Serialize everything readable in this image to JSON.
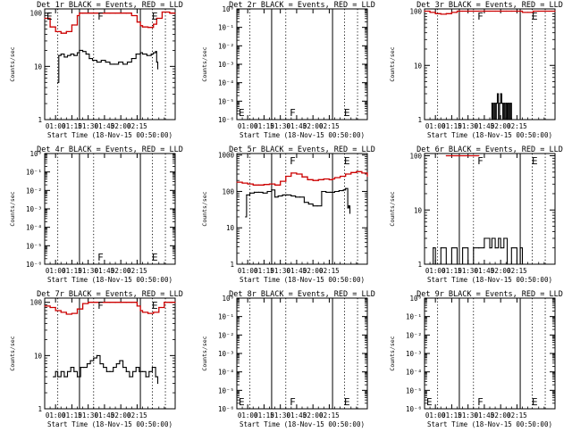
{
  "chart_data": [
    {
      "type": "line",
      "title": "Det 1r BLACK = Events, RED = LLD",
      "xlabel": "Start Time (18-Nov-15 00:50:00)",
      "ylabel": "Counts/sec",
      "yscale": "log",
      "ylim": [
        1,
        120
      ],
      "ytick_labels": [
        "1",
        "10",
        "100"
      ],
      "xlim_min": [
        0,
        120
      ],
      "xtick_labels": [
        "01:00",
        "01:15",
        "01:30",
        "01:45",
        "02:00",
        "02:15"
      ],
      "markers": [
        {
          "label": "E",
          "x": 0
        },
        {
          "label": "F",
          "x": 47
        },
        {
          "label": "E",
          "x": 97
        }
      ],
      "dotted_lines_min": [
        12,
        45,
        99,
        111
      ],
      "solid_lines_min": [
        32,
        88
      ],
      "series": [
        {
          "color": "#cc0000",
          "role": "red",
          "x": [
            0,
            5,
            10,
            15,
            20,
            25,
            30,
            32,
            35,
            40,
            45,
            50,
            55,
            60,
            65,
            70,
            75,
            80,
            85,
            88,
            90,
            95,
            100,
            103,
            108,
            115,
            120
          ],
          "y": [
            80,
            55,
            45,
            42,
            45,
            60,
            90,
            100,
            100,
            100,
            100,
            100,
            100,
            100,
            100,
            100,
            100,
            90,
            68,
            58,
            55,
            54,
            62,
            80,
            105,
            100,
            100
          ]
        },
        {
          "color": "#000000",
          "role": "black",
          "x": [
            12,
            13,
            15,
            18,
            21,
            24,
            27,
            30,
            32,
            35,
            38,
            41,
            44,
            48,
            52,
            56,
            60,
            64,
            68,
            72,
            76,
            80,
            84,
            88,
            90,
            94,
            98,
            100,
            102,
            103,
            104
          ],
          "y": [
            5,
            16,
            17,
            15,
            16,
            17,
            16,
            18,
            20,
            19,
            17,
            14,
            13,
            12,
            13,
            12,
            11,
            11,
            12,
            11,
            12,
            14,
            17,
            18,
            17,
            16,
            17,
            18,
            19,
            12,
            9
          ]
        }
      ]
    },
    {
      "type": "line",
      "title": "Det 2r BLACK = Events, RED = LLD",
      "xlabel": "Start Time (18-Nov-15 00:50:00)",
      "ylabel": "Counts/sec",
      "yscale": "log",
      "ylim": [
        1e-06,
        1.0
      ],
      "ytick_labels": [
        "10⁻⁶",
        "10⁻⁵",
        "10⁻⁴",
        "10⁻³",
        "10⁻²",
        "10⁻¹",
        "10⁰"
      ],
      "xlim_min": [
        0,
        120
      ],
      "xtick_labels": [
        "01:00",
        "01:15",
        "01:30",
        "01:45",
        "02:00",
        "02:15"
      ],
      "markers": [
        {
          "label": "E",
          "x": 0
        },
        {
          "label": "F",
          "x": 47
        },
        {
          "label": "E",
          "x": 97
        }
      ],
      "dotted_lines_min": [
        12,
        45,
        99,
        111
      ],
      "solid_lines_min": [
        32,
        88
      ],
      "series": []
    },
    {
      "type": "line",
      "title": "Det 3r BLACK = Events, RED = LLD",
      "xlabel": "Start Time (18-Nov-15 00:50:00)",
      "ylabel": "Counts/sec",
      "yscale": "log",
      "ylim": [
        1,
        110
      ],
      "ytick_labels": [
        "1",
        "10",
        "100"
      ],
      "xlim_min": [
        0,
        120
      ],
      "xtick_labels": [
        "01:00",
        "01:15",
        "01:30",
        "01:45",
        "02:00",
        "02:15"
      ],
      "markers": [
        {
          "label": "F",
          "x": 47
        },
        {
          "label": "E",
          "x": 97
        }
      ],
      "dotted_lines_min": [
        12,
        45,
        99,
        111
      ],
      "solid_lines_min": [
        32,
        88
      ],
      "series": [
        {
          "color": "#cc0000",
          "role": "red",
          "x": [
            0,
            5,
            10,
            15,
            20,
            25,
            30,
            35,
            40,
            45,
            50,
            55,
            60,
            65,
            70,
            75,
            80,
            85,
            90,
            95,
            100,
            105,
            110,
            115,
            120
          ],
          "y": [
            100,
            95,
            90,
            88,
            90,
            95,
            100,
            100,
            100,
            100,
            100,
            100,
            100,
            100,
            100,
            100,
            100,
            100,
            95,
            95,
            100,
            100,
            100,
            100,
            100
          ]
        },
        {
          "color": "#000000",
          "role": "black",
          "x": [
            60,
            62,
            63,
            64,
            65,
            66,
            67,
            68,
            69,
            70,
            71,
            72,
            73,
            74,
            75,
            76,
            77,
            78,
            79,
            80
          ],
          "y": [
            1,
            2,
            1,
            2,
            1,
            2,
            3,
            1,
            2,
            3,
            2,
            1,
            2,
            1,
            2,
            1,
            2,
            1,
            2,
            1
          ]
        }
      ]
    },
    {
      "type": "line",
      "title": "Det 4r BLACK = Events, RED = LLD",
      "xlabel": "Start Time (18-Nov-15 00:50:00)",
      "ylabel": "Counts/sec",
      "yscale": "log",
      "ylim": [
        1e-06,
        1.0
      ],
      "ytick_labels": [
        "10⁻⁶",
        "10⁻⁵",
        "10⁻⁴",
        "10⁻³",
        "10⁻²",
        "10⁻¹",
        "10⁰"
      ],
      "xlim_min": [
        0,
        120
      ],
      "xtick_labels": [
        "01:00",
        "01:15",
        "01:30",
        "01:45",
        "02:00",
        "02:15"
      ],
      "markers": [
        {
          "label": "F",
          "x": 47
        },
        {
          "label": "E",
          "x": 97
        }
      ],
      "dotted_lines_min": [
        12,
        45,
        99,
        111
      ],
      "solid_lines_min": [
        32,
        88
      ],
      "series": []
    },
    {
      "type": "line",
      "title": "Det 5r BLACK = Events, RED = LLD",
      "xlabel": "Start Time (18-Nov-15 00:50:00)",
      "ylabel": "Counts/sec",
      "yscale": "log",
      "ylim": [
        1,
        1100
      ],
      "ytick_labels": [
        "1",
        "10",
        "100",
        "1000"
      ],
      "xlim_min": [
        0,
        120
      ],
      "xtick_labels": [
        "01:00",
        "01:15",
        "01:30",
        "01:45",
        "02:00",
        "02:15"
      ],
      "markers": [
        {
          "label": "F",
          "x": 47
        },
        {
          "label": "E",
          "x": 97
        }
      ],
      "dotted_lines_min": [
        12,
        45,
        99,
        111
      ],
      "solid_lines_min": [
        32,
        88
      ],
      "series": [
        {
          "color": "#cc0000",
          "role": "red",
          "x": [
            0,
            5,
            10,
            15,
            20,
            25,
            30,
            35,
            40,
            45,
            50,
            55,
            60,
            65,
            70,
            75,
            80,
            85,
            88,
            90,
            95,
            100,
            105,
            110,
            115,
            120
          ],
          "y": [
            180,
            170,
            160,
            150,
            150,
            155,
            160,
            150,
            190,
            260,
            320,
            300,
            250,
            210,
            200,
            210,
            220,
            210,
            220,
            240,
            260,
            300,
            330,
            350,
            320,
            260
          ]
        },
        {
          "color": "#000000",
          "role": "black",
          "x": [
            8,
            9,
            12,
            16,
            20,
            24,
            28,
            32,
            35,
            38,
            42,
            46,
            50,
            54,
            58,
            62,
            66,
            70,
            74,
            78,
            82,
            86,
            88,
            90,
            94,
            98,
            100,
            102,
            103,
            104
          ],
          "y": [
            20,
            80,
            90,
            95,
            95,
            90,
            100,
            110,
            70,
            75,
            80,
            80,
            75,
            70,
            70,
            50,
            45,
            40,
            40,
            100,
            95,
            95,
            95,
            100,
            105,
            110,
            120,
            35,
            40,
            25
          ]
        }
      ]
    },
    {
      "type": "line",
      "title": "Det 6r BLACK = Events, RED = LLD",
      "xlabel": "Start Time (18-Nov-15 00:50:00)",
      "ylabel": "Counts/sec",
      "yscale": "log",
      "ylim": [
        1,
        110
      ],
      "ytick_labels": [
        "1",
        "10",
        "100"
      ],
      "xlim_min": [
        0,
        120
      ],
      "xtick_labels": [
        "01:00",
        "01:15",
        "01:30",
        "01:45",
        "02:00",
        "02:15"
      ],
      "markers": [
        {
          "label": "F",
          "x": 47
        },
        {
          "label": "E",
          "x": 97
        }
      ],
      "dotted_lines_min": [
        12,
        45,
        99,
        111
      ],
      "solid_lines_min": [
        32,
        88
      ],
      "series": [
        {
          "color": "#cc0000",
          "role": "red",
          "x": [
            20,
            30,
            40,
            50
          ],
          "y": [
            100,
            100,
            100,
            100
          ]
        },
        {
          "color": "#000000",
          "role": "black",
          "x": [
            5,
            8,
            10,
            15,
            20,
            25,
            30,
            35,
            40,
            45,
            50,
            55,
            60,
            62,
            65,
            68,
            70,
            73,
            76,
            80,
            85,
            88,
            90
          ],
          "y": [
            1,
            2,
            1,
            2,
            1,
            2,
            1,
            2,
            1,
            2,
            2,
            3,
            2,
            3,
            2,
            3,
            2,
            3,
            1,
            2,
            1,
            2,
            1
          ]
        }
      ]
    },
    {
      "type": "line",
      "title": "Det 7r BLACK = Events, RED = LLD",
      "xlabel": "Start Time (18-Nov-15 00:50:00)",
      "ylabel": "Counts/sec",
      "yscale": "log",
      "ylim": [
        1,
        120
      ],
      "ytick_labels": [
        "1",
        "10",
        "100"
      ],
      "xlim_min": [
        0,
        120
      ],
      "xtick_labels": [
        "01:00",
        "01:15",
        "01:30",
        "01:45",
        "02:00",
        "02:15"
      ],
      "markers": [
        {
          "label": "F",
          "x": 47
        },
        {
          "label": "E",
          "x": 97
        }
      ],
      "dotted_lines_min": [
        12,
        45,
        99,
        111
      ],
      "solid_lines_min": [
        32,
        88
      ],
      "series": [
        {
          "color": "#cc0000",
          "role": "red",
          "x": [
            0,
            5,
            10,
            15,
            20,
            25,
            30,
            35,
            40,
            45,
            50,
            55,
            60,
            65,
            70,
            75,
            80,
            85,
            88,
            90,
            95,
            100,
            105,
            110,
            115,
            120
          ],
          "y": [
            85,
            80,
            70,
            65,
            60,
            62,
            75,
            95,
            100,
            100,
            100,
            100,
            100,
            100,
            100,
            100,
            100,
            85,
            70,
            65,
            62,
            65,
            80,
            100,
            100,
            100
          ]
        },
        {
          "color": "#000000",
          "role": "black",
          "x": [
            8,
            10,
            12,
            15,
            18,
            21,
            24,
            27,
            30,
            33,
            36,
            39,
            42,
            45,
            48,
            51,
            54,
            57,
            60,
            63,
            66,
            69,
            72,
            75,
            78,
            81,
            84,
            87,
            90,
            93,
            96,
            99,
            102,
            104
          ],
          "y": [
            4,
            5,
            4,
            5,
            4,
            5,
            6,
            5,
            4,
            6,
            6,
            7,
            8,
            9,
            10,
            7,
            6,
            5,
            5,
            6,
            7,
            8,
            6,
            5,
            4,
            5,
            6,
            5,
            5,
            4,
            5,
            6,
            4,
            3
          ]
        }
      ]
    },
    {
      "type": "line",
      "title": "Det 8r BLACK = Events, RED = LLD",
      "xlabel": "Start Time (18-Nov-15 00:50:00)",
      "ylabel": "Counts/sec",
      "yscale": "log",
      "ylim": [
        1e-06,
        1.0
      ],
      "ytick_labels": [
        "10⁻⁶",
        "10⁻⁵",
        "10⁻⁴",
        "10⁻³",
        "10⁻²",
        "10⁻¹",
        "10⁰"
      ],
      "xlim_min": [
        0,
        120
      ],
      "xtick_labels": [
        "01:00",
        "01:15",
        "01:30",
        "01:45",
        "02:00",
        "02:15"
      ],
      "markers": [
        {
          "label": "E",
          "x": 0
        },
        {
          "label": "F",
          "x": 47
        },
        {
          "label": "E",
          "x": 97
        }
      ],
      "dotted_lines_min": [
        12,
        45,
        99,
        111
      ],
      "solid_lines_min": [
        32,
        88
      ],
      "series": []
    },
    {
      "type": "line",
      "title": "Det 9r BLACK = Events, RED = LLD",
      "xlabel": "Start Time (18-Nov-15 00:50:00)",
      "ylabel": "Counts/sec",
      "yscale": "log",
      "ylim": [
        1e-06,
        1.0
      ],
      "ytick_labels": [
        "10⁻⁶",
        "10⁻⁵",
        "10⁻⁴",
        "10⁻³",
        "10⁻²",
        "10⁻¹",
        "10⁰"
      ],
      "xlim_min": [
        0,
        120
      ],
      "xtick_labels": [
        "01:00",
        "01:15",
        "01:30",
        "01:45",
        "02:00",
        "02:15"
      ],
      "markers": [
        {
          "label": "E",
          "x": 0
        },
        {
          "label": "F",
          "x": 47
        },
        {
          "label": "E",
          "x": 97
        }
      ],
      "dotted_lines_min": [
        12,
        45,
        99,
        111
      ],
      "solid_lines_min": [
        32,
        88
      ],
      "series": []
    }
  ]
}
